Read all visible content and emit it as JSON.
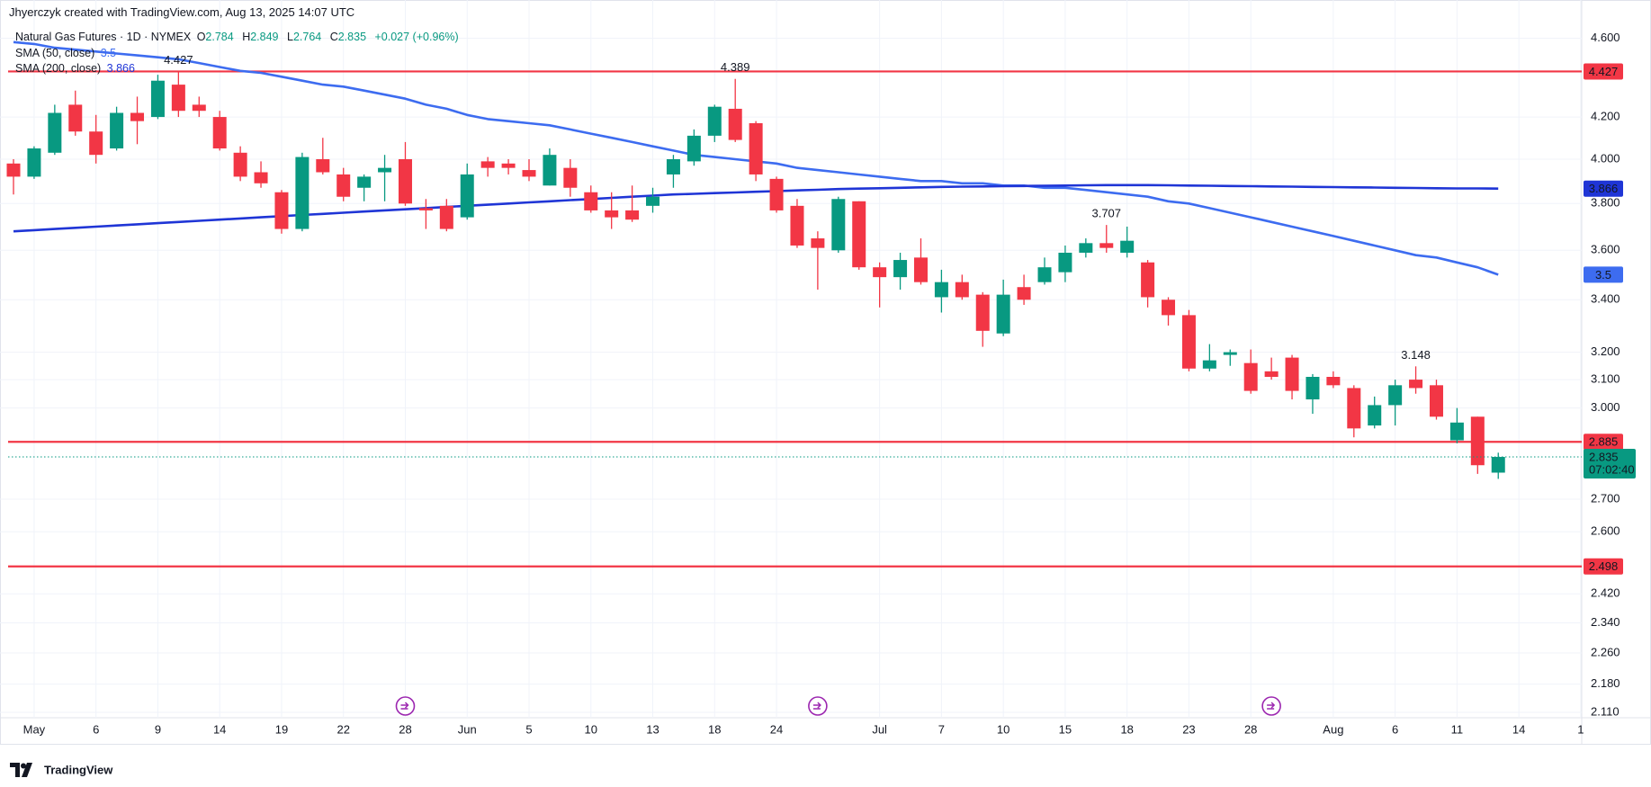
{
  "header": "Jhyerczyk created with TradingView.com, Aug 13, 2025 14:07 UTC",
  "logo": "TradingView",
  "chart_data": {
    "type": "candlestick",
    "symbol": "Natural Gas Futures · 1D · NYMEX",
    "ohlc_labels": [
      "O",
      "H",
      "L",
      "C"
    ],
    "change_label": "+0.027 (+0.96%)",
    "up_color": "#089981",
    "down_color": "#f23645",
    "level_color": "#f23645",
    "log_scale": true,
    "grid": true,
    "ylim": [
      2.097,
      4.68
    ],
    "yticks": [
      {
        "value": 4.6,
        "label": "4.600"
      },
      {
        "value": 4.2,
        "label": "4.200"
      },
      {
        "value": 4.0,
        "label": "4.000"
      },
      {
        "value": 3.8,
        "label": "3.800"
      },
      {
        "value": 3.6,
        "label": "3.600"
      },
      {
        "value": 3.4,
        "label": "3.400"
      },
      {
        "value": 3.2,
        "label": "3.200"
      },
      {
        "value": 3.1,
        "label": "3.100"
      },
      {
        "value": 3.0,
        "label": "3.000"
      },
      {
        "value": 2.7,
        "label": "2.700"
      },
      {
        "value": 2.6,
        "label": "2.600"
      },
      {
        "value": 2.42,
        "label": "2.420"
      },
      {
        "value": 2.34,
        "label": "2.340"
      },
      {
        "value": 2.26,
        "label": "2.260"
      },
      {
        "value": 2.18,
        "label": "2.180"
      },
      {
        "value": 2.11,
        "label": "2.110"
      }
    ],
    "categories": [
      null,
      "May",
      null,
      null,
      "6",
      null,
      null,
      "9",
      null,
      null,
      "14",
      null,
      null,
      "19",
      null,
      null,
      "22",
      null,
      null,
      "28",
      null,
      null,
      "Jun",
      null,
      null,
      "5",
      null,
      null,
      "10",
      null,
      null,
      "13",
      null,
      null,
      "18",
      null,
      null,
      "24",
      null,
      null,
      null,
      null,
      "Jul",
      null,
      null,
      "7",
      null,
      null,
      "10",
      null,
      null,
      "15",
      null,
      null,
      "18",
      null,
      null,
      "23",
      null,
      null,
      "28",
      null,
      null,
      null,
      "Aug",
      null,
      null,
      "6",
      null,
      null,
      "11",
      null,
      null,
      "14",
      null,
      null,
      "1"
    ],
    "open": [
      3.98,
      3.92,
      4.03,
      4.26,
      4.13,
      4.05,
      4.22,
      4.2,
      4.36,
      4.26,
      4.2,
      4.03,
      3.94,
      3.85,
      3.69,
      4.0,
      3.93,
      3.87,
      3.94,
      4.0,
      3.78,
      3.79,
      3.74,
      3.99,
      3.98,
      3.95,
      3.88,
      3.96,
      3.85,
      3.77,
      3.77,
      3.79,
      3.93,
      3.99,
      4.11,
      4.24,
      4.17,
      3.91,
      3.79,
      3.65,
      3.6,
      3.81,
      3.53,
      3.49,
      3.57,
      3.41,
      3.47,
      3.42,
      3.27,
      3.45,
      3.47,
      3.51,
      3.59,
      3.63,
      3.59,
      3.55,
      3.4,
      3.34,
      3.14,
      3.19,
      3.16,
      3.13,
      3.18,
      3.03,
      3.11,
      3.07,
      2.94,
      3.01,
      3.1,
      3.08,
      2.89,
      2.97,
      2.784,
      null,
      null,
      null,
      null
    ],
    "high": [
      4.0,
      4.06,
      4.26,
      4.33,
      4.21,
      4.25,
      4.3,
      4.41,
      4.427,
      4.3,
      4.23,
      4.06,
      3.99,
      3.86,
      4.03,
      4.1,
      3.96,
      3.93,
      4.02,
      4.08,
      3.82,
      3.82,
      3.98,
      4.01,
      4.0,
      4.0,
      4.05,
      4.0,
      3.88,
      3.85,
      3.88,
      3.87,
      4.02,
      4.14,
      4.26,
      4.389,
      4.18,
      3.92,
      3.82,
      3.68,
      3.83,
      3.81,
      3.55,
      3.59,
      3.65,
      3.52,
      3.5,
      3.43,
      3.48,
      3.5,
      3.57,
      3.62,
      3.65,
      3.707,
      3.7,
      3.56,
      3.41,
      3.36,
      3.23,
      3.21,
      3.21,
      3.18,
      3.19,
      3.12,
      3.13,
      3.08,
      3.04,
      3.1,
      3.148,
      3.1,
      3.0,
      2.97,
      2.849,
      null,
      null,
      null,
      null
    ],
    "low": [
      3.84,
      3.91,
      4.02,
      4.11,
      3.98,
      4.04,
      4.07,
      4.19,
      4.2,
      4.2,
      4.04,
      3.9,
      3.87,
      3.67,
      3.68,
      3.93,
      3.81,
      3.81,
      3.81,
      3.79,
      3.69,
      3.68,
      3.73,
      3.92,
      3.93,
      3.9,
      3.88,
      3.83,
      3.76,
      3.69,
      3.72,
      3.76,
      3.87,
      3.97,
      4.08,
      4.08,
      3.9,
      3.76,
      3.61,
      3.44,
      3.59,
      3.52,
      3.37,
      3.44,
      3.46,
      3.35,
      3.4,
      3.22,
      3.26,
      3.38,
      3.46,
      3.47,
      3.57,
      3.59,
      3.57,
      3.37,
      3.3,
      3.13,
      3.13,
      3.15,
      3.05,
      3.1,
      3.03,
      2.98,
      3.07,
      2.9,
      2.93,
      2.94,
      3.05,
      2.96,
      2.88,
      2.78,
      2.764,
      null,
      null,
      null,
      null
    ],
    "close": [
      3.92,
      4.05,
      4.22,
      4.13,
      4.02,
      4.22,
      4.18,
      4.38,
      4.23,
      4.23,
      4.05,
      3.92,
      3.89,
      3.69,
      4.01,
      3.94,
      3.83,
      3.92,
      3.96,
      3.8,
      3.77,
      3.69,
      3.93,
      3.96,
      3.96,
      3.92,
      4.02,
      3.87,
      3.77,
      3.74,
      3.73,
      3.83,
      4.0,
      4.11,
      4.25,
      4.09,
      3.93,
      3.77,
      3.62,
      3.61,
      3.82,
      3.53,
      3.49,
      3.56,
      3.47,
      3.47,
      3.41,
      3.28,
      3.42,
      3.4,
      3.53,
      3.59,
      3.63,
      3.61,
      3.64,
      3.41,
      3.34,
      3.14,
      3.17,
      3.2,
      3.06,
      3.11,
      3.06,
      3.11,
      3.08,
      2.93,
      3.01,
      3.08,
      3.07,
      2.97,
      2.95,
      2.808,
      2.835,
      null,
      null,
      null,
      null
    ],
    "series": [
      {
        "name": "SMA (50, close)",
        "color": "#3d6cf0",
        "values": [
          4.58,
          4.57,
          4.55,
          4.54,
          4.53,
          4.52,
          4.51,
          4.5,
          4.49,
          4.47,
          4.45,
          4.43,
          4.42,
          4.4,
          4.38,
          4.36,
          4.35,
          4.33,
          4.31,
          4.29,
          4.26,
          4.24,
          4.21,
          4.19,
          4.18,
          4.17,
          4.16,
          4.14,
          4.12,
          4.1,
          4.08,
          4.06,
          4.04,
          4.02,
          4.01,
          4.0,
          3.99,
          3.98,
          3.96,
          3.95,
          3.94,
          3.93,
          3.92,
          3.91,
          3.9,
          3.9,
          3.89,
          3.89,
          3.88,
          3.88,
          3.87,
          3.87,
          3.86,
          3.85,
          3.84,
          3.83,
          3.81,
          3.8,
          3.78,
          3.76,
          3.74,
          3.72,
          3.7,
          3.68,
          3.66,
          3.64,
          3.62,
          3.6,
          3.58,
          3.57,
          3.55,
          3.53,
          3.5,
          null,
          null,
          null,
          null
        ]
      },
      {
        "name": "SMA (200, close)",
        "color": "#1f35d6",
        "values": [
          3.68,
          3.685,
          3.69,
          3.695,
          3.7,
          3.705,
          3.71,
          3.715,
          3.72,
          3.725,
          3.73,
          3.735,
          3.74,
          3.745,
          3.75,
          3.755,
          3.76,
          3.765,
          3.77,
          3.775,
          3.78,
          3.785,
          3.79,
          3.795,
          3.8,
          3.805,
          3.81,
          3.815,
          3.82,
          3.825,
          3.83,
          3.835,
          3.84,
          3.843,
          3.846,
          3.849,
          3.852,
          3.855,
          3.858,
          3.861,
          3.864,
          3.866,
          3.868,
          3.87,
          3.872,
          3.874,
          3.875,
          3.876,
          3.877,
          3.878,
          3.879,
          3.88,
          3.881,
          3.882,
          3.882,
          3.882,
          3.881,
          3.88,
          3.879,
          3.878,
          3.877,
          3.876,
          3.875,
          3.874,
          3.873,
          3.872,
          3.871,
          3.87,
          3.869,
          3.868,
          3.867,
          3.867,
          3.866,
          null,
          null,
          null,
          null
        ]
      }
    ],
    "levels": [
      4.427,
      2.885,
      2.498
    ],
    "countdown": "07:02:40"
  }
}
